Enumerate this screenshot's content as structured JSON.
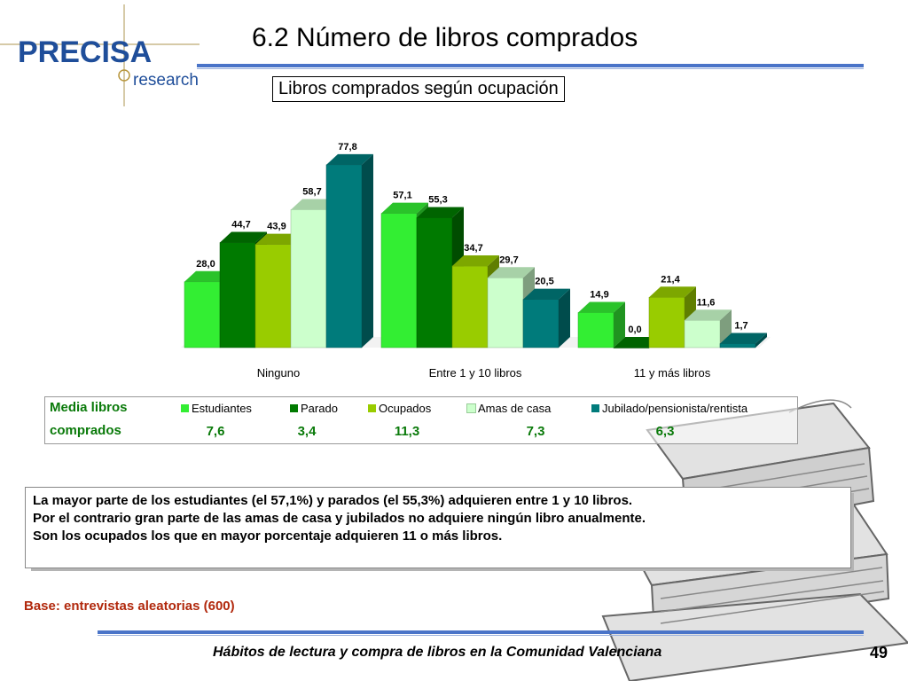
{
  "logo": {
    "brand": "PRECISA",
    "tagline": "research"
  },
  "header": {
    "title": "6.2 Número de libros comprados",
    "subtitle": "Libros comprados según ocupación"
  },
  "chart_data": {
    "type": "bar",
    "categories": [
      "Ninguno",
      "Entre 1 y 10 libros",
      "11 y más libros"
    ],
    "series": [
      {
        "name": "Estudiantes",
        "values": [
          28.0,
          57.1,
          14.9
        ],
        "labels": [
          "28,0",
          "57,1",
          "14,9"
        ],
        "color": "#33ee33"
      },
      {
        "name": "Parado",
        "values": [
          44.7,
          55.3,
          0.0
        ],
        "labels": [
          "44,7",
          "55,3",
          "0,0"
        ],
        "color": "#007a00"
      },
      {
        "name": "Ocupados",
        "values": [
          43.9,
          34.7,
          21.4
        ],
        "labels": [
          "43,9",
          "34,7",
          "21,4"
        ],
        "color": "#99cc00"
      },
      {
        "name": "Amas de casa",
        "values": [
          58.7,
          29.7,
          11.6
        ],
        "labels": [
          "58,7",
          "29,7",
          "11,6"
        ],
        "color": "#ccffcc"
      },
      {
        "name": "Jubilado/pensionista/rentista",
        "values": [
          77.8,
          20.5,
          1.7
        ],
        "labels": [
          "77,8",
          "20,5",
          "1,7"
        ],
        "color": "#007b7b"
      }
    ],
    "ylim": [
      0,
      80
    ],
    "grid": false,
    "legend": "bottom"
  },
  "legend_table": {
    "header_line1": "Media libros",
    "header_line2": "comprados",
    "means": [
      "7,6",
      "3,4",
      "11,3",
      "7,3",
      "6,3"
    ]
  },
  "note": {
    "line1": "La mayor parte de los estudiantes (el 57,1%) y parados (el 55,3%) adquieren entre 1 y 10 libros.",
    "line2": "Por el contrario gran parte de las amas de casa y jubilados no adquiere ningún libro anualmente.",
    "line3": "Son los ocupados los que en mayor porcentaje adquieren 11 o más libros."
  },
  "base": "Base: entrevistas aleatorias (600)",
  "footer": {
    "text": "Hábitos de lectura y compra de libros en la Comunidad Valenciana",
    "page": "49"
  }
}
